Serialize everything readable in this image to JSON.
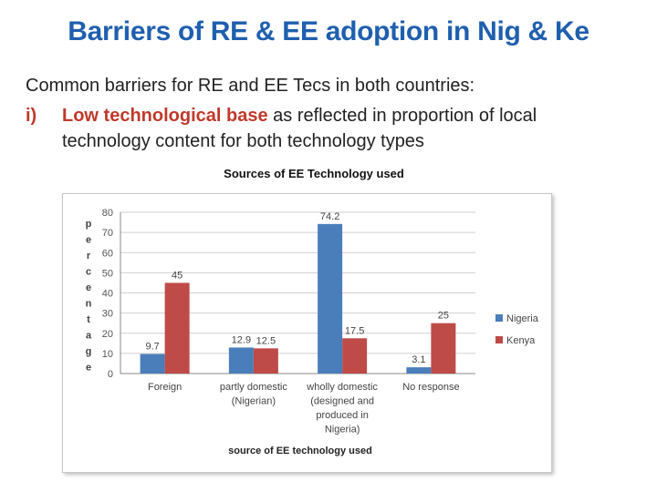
{
  "slide": {
    "title": "Barriers of RE & EE adoption in Nig & Ke",
    "intro": "Common barriers for RE and EE Tecs in both countries:",
    "bullet": {
      "number": "i)",
      "highlight": "Low technological base",
      "rest": " as reflected in proportion of local technology content for both technology types"
    }
  },
  "colors": {
    "title": "#1f5fae",
    "nigeria": "#4a7ebb",
    "kenya": "#be4b48",
    "highlight": "#c0392b"
  },
  "chart_data": {
    "type": "bar",
    "title": "Sources of EE Technology used",
    "xlabel": "source of EE technology used",
    "ylabel": "percentage",
    "ylim": [
      0,
      80
    ],
    "yticks": [
      0,
      10,
      20,
      30,
      40,
      50,
      60,
      70,
      80
    ],
    "grid": true,
    "legend": "right",
    "categories": [
      [
        "Foreign"
      ],
      [
        "partly domestic",
        "(Nigerian)"
      ],
      [
        "wholly domestic",
        "(designed and",
        "produced in",
        "Nigeria)"
      ],
      [
        "No response"
      ]
    ],
    "series": [
      {
        "name": "Nigeria",
        "values": [
          9.7,
          12.9,
          74.2,
          3.1
        ],
        "labels": [
          "9.7",
          "12.9",
          "74.2",
          "3.1"
        ]
      },
      {
        "name": "Kenya",
        "values": [
          45,
          12.5,
          17.5,
          25
        ],
        "labels": [
          "45",
          "12.5",
          "17.5",
          "25"
        ]
      }
    ]
  }
}
